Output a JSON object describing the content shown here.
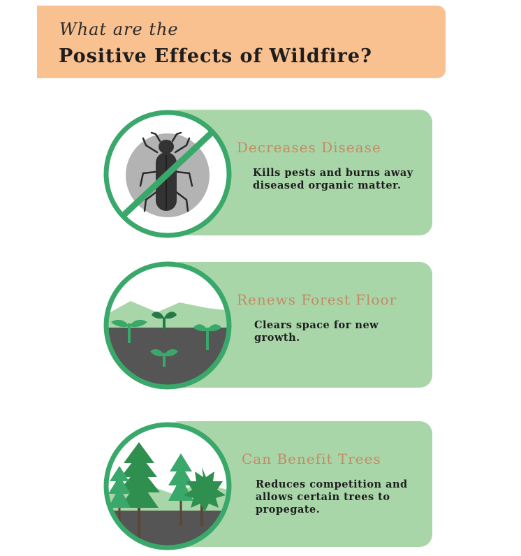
{
  "header": {
    "subtitle": "What are the",
    "title": "Positive Effects of Wildfire?"
  },
  "effects": [
    {
      "title": "Decreases Disease",
      "description": "Kills pests and burns away diseased organic matter.",
      "icon": "crossed-out-beetle-icon"
    },
    {
      "title": "Renews Forest Floor",
      "description": "Clears space for new growth.",
      "icon": "sprouting-seedlings-icon"
    },
    {
      "title": "Can Benefit Trees",
      "description": "Reduces competition and allows certain trees to propegate.",
      "icon": "forest-trees-icon"
    }
  ],
  "colors": {
    "header_bg": "#f9c090",
    "card_bg": "#a9d6a9",
    "ring": "#3aa86a",
    "title_text": "#c48a63"
  }
}
